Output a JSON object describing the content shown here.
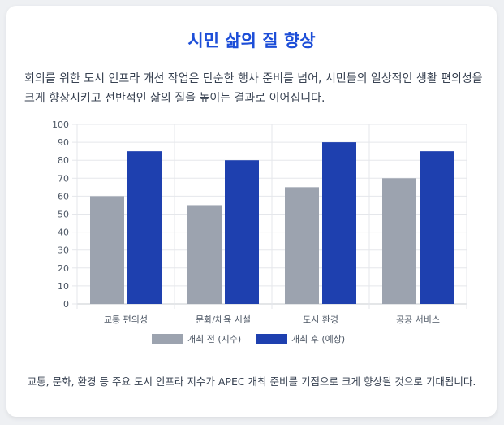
{
  "page": {
    "title": "시민 삶의 질 향상",
    "intro": "회의를 위한 도시 인프라 개선 작업은 단순한 행사 준비를 넘어, 시민들의 일상적인 생활 편의성을 크게 향상시키고 전반적인 삶의 질을 높이는 결과로 이어집니다.",
    "footer": "교통, 문화, 환경 등 주요 도시 인프라 지수가 APEC 개최 준비를 기점으로 크게 향상될 것으로 기대됩니다."
  },
  "colors": {
    "title": "#1d4ed8",
    "before": "#9ca3af",
    "after": "#1e40af"
  },
  "chart_data": {
    "type": "bar",
    "title": "",
    "xlabel": "",
    "ylabel": "",
    "categories": [
      "교통 편의성",
      "문화/체육 시설",
      "도시 환경",
      "공공 서비스"
    ],
    "series": [
      {
        "name": "개최 전 (지수)",
        "values": [
          60,
          55,
          65,
          70
        ],
        "color": "#9ca3af"
      },
      {
        "name": "개최 후 (예상)",
        "values": [
          85,
          80,
          90,
          85
        ],
        "color": "#1e40af"
      }
    ],
    "ylim": [
      0,
      100
    ],
    "yticks": [
      0,
      10,
      20,
      30,
      40,
      50,
      60,
      70,
      80,
      90,
      100
    ],
    "grid": true,
    "legend": "bottom"
  }
}
